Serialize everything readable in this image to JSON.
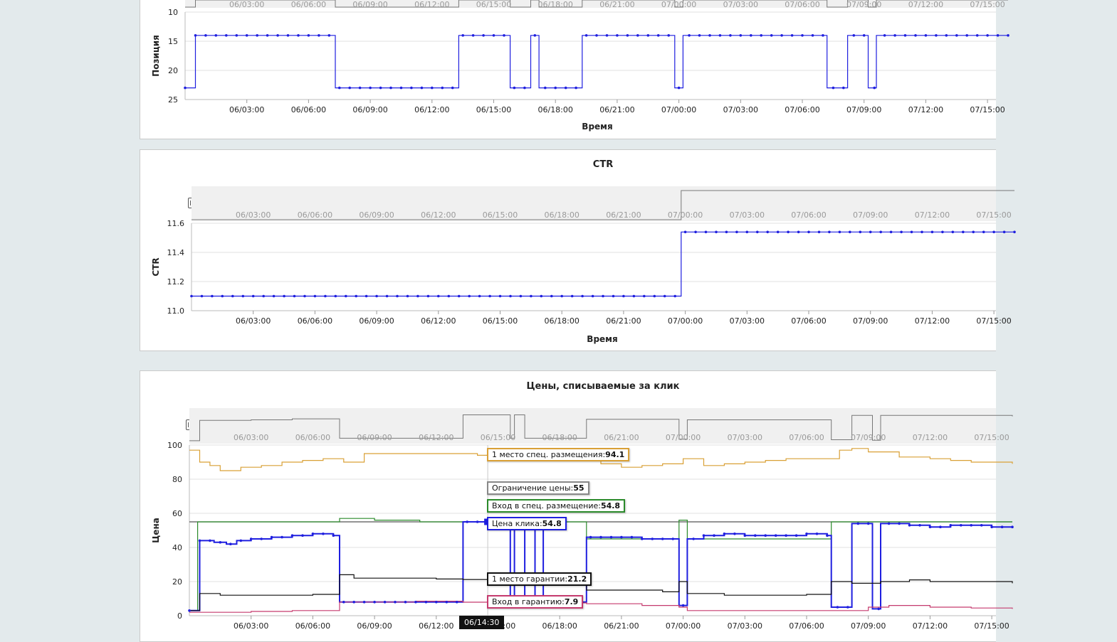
{
  "times": [
    "06/03:00",
    "06/06:00",
    "06/09:00",
    "06/12:00",
    "06/15:00",
    "06/18:00",
    "06/21:00",
    "07/00:00",
    "07/03:00",
    "07/06:00",
    "07/09:00",
    "07/12:00",
    "07/15:00"
  ],
  "chart_data": [
    {
      "type": "line",
      "title": "",
      "xlabel": "Время",
      "ylabel": "Позиция",
      "ylim": [
        25,
        10
      ],
      "y_inverted": true,
      "yticks": [
        "10",
        "15",
        "20",
        "25"
      ],
      "x_range_hours": [
        0,
        40
      ],
      "series": [
        {
          "color": "#1f1fdf",
          "step_points": [
            [
              0,
              23
            ],
            [
              0.5,
              14
            ],
            [
              7.3,
              23
            ],
            [
              13.3,
              14
            ],
            [
              15.8,
              23
            ],
            [
              16.8,
              14
            ],
            [
              17.2,
              23
            ],
            [
              19.3,
              14
            ],
            [
              23.8,
              23
            ],
            [
              24.2,
              14
            ],
            [
              31.2,
              23
            ],
            [
              32.2,
              14
            ],
            [
              33.2,
              23
            ],
            [
              33.6,
              14
            ],
            [
              40,
              14
            ]
          ]
        }
      ]
    },
    {
      "type": "line",
      "title": "CTR",
      "xlabel": "Время",
      "ylabel": "CTR",
      "ylim": [
        11.0,
        11.6
      ],
      "yticks": [
        "11.0",
        "11.2",
        "11.4",
        "11.6"
      ],
      "x_range_hours": [
        0,
        40
      ],
      "series": [
        {
          "color": "#1f1fdf",
          "step_points": [
            [
              0,
              11.1
            ],
            [
              23.8,
              11.54
            ],
            [
              40,
              11.54
            ]
          ]
        }
      ]
    },
    {
      "type": "line",
      "title": "Цены, списываемые за клик",
      "xlabel": "",
      "ylabel": "Цена",
      "ylim": [
        0,
        100
      ],
      "yticks": [
        "0",
        "20",
        "40",
        "60",
        "80",
        "100"
      ],
      "x_range_hours": [
        0,
        40
      ],
      "series": [
        {
          "color": "#d9a036",
          "step_points": [
            [
              0,
              97
            ],
            [
              0.5,
              90
            ],
            [
              1,
              88
            ],
            [
              1.5,
              85
            ],
            [
              2.5,
              87
            ],
            [
              3.5,
              88
            ],
            [
              4.5,
              90
            ],
            [
              5.5,
              91
            ],
            [
              6.5,
              92
            ],
            [
              7.5,
              90
            ],
            [
              8.5,
              95
            ],
            [
              10,
              95
            ],
            [
              11.5,
              95
            ],
            [
              13,
              95
            ],
            [
              14,
              94
            ],
            [
              15,
              94
            ],
            [
              16,
              93
            ],
            [
              17,
              92
            ],
            [
              18,
              92
            ],
            [
              19,
              91
            ],
            [
              20,
              89
            ],
            [
              21,
              87
            ],
            [
              22,
              88
            ],
            [
              23,
              89
            ],
            [
              24,
              92
            ],
            [
              25,
              88
            ],
            [
              26,
              89
            ],
            [
              27,
              90
            ],
            [
              28,
              91
            ],
            [
              29,
              92
            ],
            [
              30,
              92
            ],
            [
              31,
              92
            ],
            [
              31.6,
              97
            ],
            [
              32.2,
              98
            ],
            [
              33,
              96
            ],
            [
              34.5,
              93
            ],
            [
              36,
              92
            ],
            [
              37,
              91
            ],
            [
              38,
              90
            ],
            [
              40,
              89
            ]
          ]
        },
        {
          "color": "#555555",
          "step_points": [
            [
              0,
              55
            ],
            [
              40,
              55
            ]
          ]
        },
        {
          "color": "#2a8a2a",
          "step_points": [
            [
              0,
              3
            ],
            [
              0.4,
              55
            ],
            [
              7.3,
              57
            ],
            [
              9,
              56
            ],
            [
              11.2,
              55
            ],
            [
              13,
              55
            ],
            [
              13.3,
              55
            ],
            [
              19.3,
              45
            ],
            [
              23.5,
              45
            ],
            [
              23.8,
              56
            ],
            [
              24.2,
              45
            ],
            [
              31.2,
              55
            ],
            [
              33.6,
              55
            ],
            [
              40,
              55
            ]
          ]
        },
        {
          "color": "#1f1fdf",
          "dots": true,
          "step_points": [
            [
              0,
              3
            ],
            [
              0.5,
              44
            ],
            [
              1.2,
              43
            ],
            [
              1.8,
              42
            ],
            [
              2.3,
              44
            ],
            [
              3,
              45
            ],
            [
              4,
              46
            ],
            [
              5,
              47
            ],
            [
              6,
              48
            ],
            [
              7,
              47
            ],
            [
              7.3,
              8
            ],
            [
              13.3,
              55
            ],
            [
              14,
              55
            ],
            [
              15.6,
              8
            ],
            [
              15.8,
              55
            ],
            [
              16.3,
              8
            ],
            [
              16.8,
              55
            ],
            [
              17.2,
              8
            ],
            [
              19.3,
              46
            ],
            [
              20,
              46
            ],
            [
              21,
              46
            ],
            [
              22,
              45
            ],
            [
              23.8,
              6
            ],
            [
              24.2,
              45
            ],
            [
              25,
              47
            ],
            [
              26,
              48
            ],
            [
              27,
              47
            ],
            [
              29,
              47
            ],
            [
              30,
              48
            ],
            [
              31,
              47
            ],
            [
              31.2,
              5
            ],
            [
              32.2,
              54
            ],
            [
              33.2,
              4
            ],
            [
              33.6,
              54
            ],
            [
              35,
              53
            ],
            [
              36,
              52
            ],
            [
              37,
              53
            ],
            [
              38,
              53
            ],
            [
              39,
              52
            ],
            [
              40,
              52
            ]
          ]
        },
        {
          "color": "#111111",
          "step_points": [
            [
              0,
              3
            ],
            [
              0.5,
              13
            ],
            [
              1.5,
              12
            ],
            [
              2.5,
              12
            ],
            [
              4,
              12
            ],
            [
              5,
              12
            ],
            [
              6,
              12.5
            ],
            [
              7.3,
              24
            ],
            [
              8,
              22
            ],
            [
              10,
              22
            ],
            [
              12,
              21.5
            ],
            [
              13.3,
              21.2
            ],
            [
              15,
              21
            ],
            [
              17,
              18
            ],
            [
              19.3,
              15
            ],
            [
              21,
              15
            ],
            [
              23,
              14
            ],
            [
              23.8,
              20
            ],
            [
              24.2,
              13
            ],
            [
              26,
              12
            ],
            [
              28,
              12
            ],
            [
              30,
              12.5
            ],
            [
              31.2,
              20
            ],
            [
              32.2,
              19
            ],
            [
              33.6,
              20
            ],
            [
              35,
              21
            ],
            [
              36,
              20
            ],
            [
              38,
              20
            ],
            [
              40,
              19
            ]
          ]
        },
        {
          "color": "#c53a6e",
          "step_points": [
            [
              0,
              2
            ],
            [
              3,
              2.5
            ],
            [
              5,
              3
            ],
            [
              7.3,
              8
            ],
            [
              9,
              8
            ],
            [
              11,
              8.5
            ],
            [
              13.3,
              7.9
            ],
            [
              15,
              8
            ],
            [
              17,
              7.5
            ],
            [
              19.3,
              7
            ],
            [
              22,
              6
            ],
            [
              23.8,
              5
            ],
            [
              24.2,
              3
            ],
            [
              28,
              3
            ],
            [
              31.2,
              3
            ],
            [
              33,
              5
            ],
            [
              34,
              6
            ],
            [
              36,
              5
            ],
            [
              38,
              4.5
            ],
            [
              40,
              4
            ]
          ]
        }
      ]
    }
  ],
  "navigator": {
    "panel1": [
      [
        0,
        23
      ],
      [
        0.5,
        14
      ],
      [
        7.3,
        23
      ],
      [
        13.3,
        14
      ],
      [
        15.8,
        23
      ],
      [
        16.8,
        14
      ],
      [
        17.2,
        23
      ],
      [
        19.3,
        14
      ],
      [
        23.8,
        23
      ],
      [
        24.2,
        14
      ],
      [
        31.2,
        23
      ],
      [
        32.2,
        14
      ],
      [
        33.2,
        23
      ],
      [
        33.6,
        14
      ],
      [
        40,
        14
      ]
    ],
    "panel2": [
      [
        0,
        11.1
      ],
      [
        23.8,
        11.54
      ],
      [
        40,
        11.54
      ]
    ],
    "panel3": [
      [
        0,
        3
      ],
      [
        0.5,
        44
      ],
      [
        3,
        45
      ],
      [
        5,
        47
      ],
      [
        7,
        47
      ],
      [
        7.3,
        8
      ],
      [
        13.3,
        55
      ],
      [
        15.6,
        8
      ],
      [
        15.8,
        55
      ],
      [
        16.3,
        8
      ],
      [
        19.3,
        46
      ],
      [
        23.8,
        6
      ],
      [
        24.2,
        45
      ],
      [
        31.2,
        5
      ],
      [
        32.2,
        54
      ],
      [
        33.2,
        4
      ],
      [
        33.6,
        54
      ],
      [
        40,
        52
      ]
    ]
  },
  "tooltip": {
    "time": "06/14:30",
    "items": [
      {
        "label": "1 место спец. размещения:",
        "value": "94.1",
        "color": "#d9a036"
      },
      {
        "label": "Ограничение цены:",
        "value": "55",
        "color": "#888888"
      },
      {
        "label": "Вход в спец. размещение:",
        "value": "54.8",
        "color": "#2a8a2a"
      },
      {
        "label": "Цена клика:",
        "value": "54.8",
        "color": "#1f1fdf"
      },
      {
        "label": "1 место гарантии:",
        "value": "21.2",
        "color": "#111111"
      },
      {
        "label": "Вход в гарантию:",
        "value": "7.9",
        "color": "#c53a6e"
      }
    ]
  }
}
